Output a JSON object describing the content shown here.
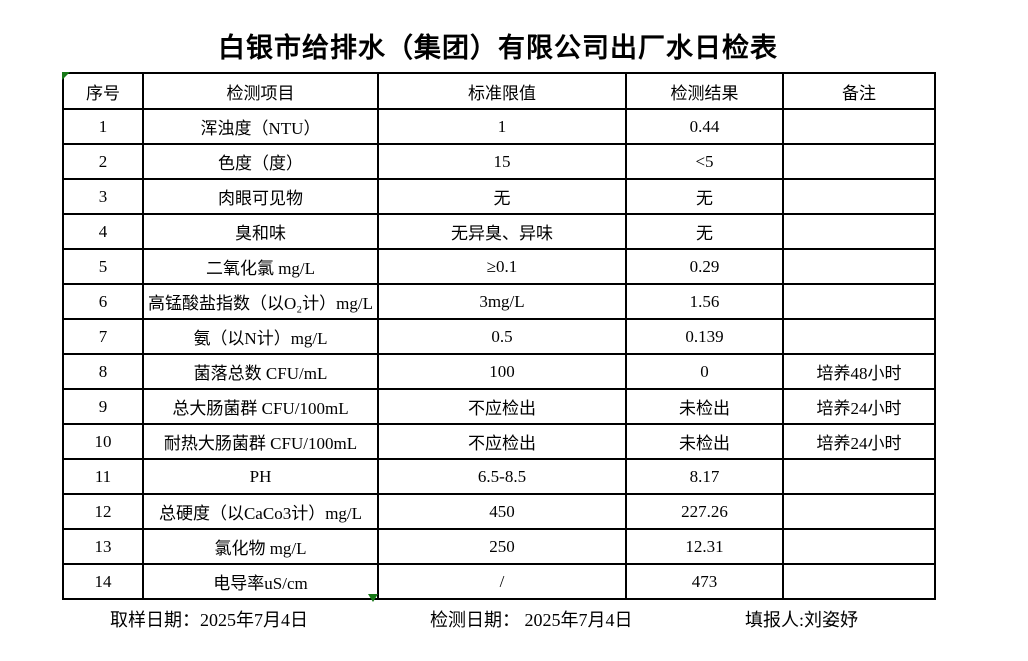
{
  "title": "白银市给排水（集团）有限公司出厂水日检表",
  "table": {
    "headers": [
      "序号",
      "检测项目",
      "标准限值",
      "检测结果",
      "备注"
    ],
    "rows": [
      [
        "1",
        "浑浊度（NTU）",
        "1",
        "0.44",
        ""
      ],
      [
        "2",
        "色度（度）",
        "15",
        "<5",
        ""
      ],
      [
        "3",
        "肉眼可见物",
        "无",
        "无",
        ""
      ],
      [
        "4",
        "臭和味",
        "无异臭、异味",
        "无",
        ""
      ],
      [
        "5",
        "二氧化氯 mg/L",
        "≥0.1",
        "0.29",
        ""
      ],
      [
        "6",
        "高锰酸盐指数（以O₂计）mg/L",
        "3mg/L",
        "1.56",
        ""
      ],
      [
        "7",
        "氨（以N计）mg/L",
        "0.5",
        "0.139",
        ""
      ],
      [
        "8",
        "菌落总数 CFU/mL",
        "100",
        "0",
        "培养48小时"
      ],
      [
        "9",
        "总大肠菌群 CFU/100mL",
        "不应检出",
        "未检出",
        "培养24小时"
      ],
      [
        "10",
        "耐热大肠菌群 CFU/100mL",
        "不应检出",
        "未检出",
        "培养24小时"
      ],
      [
        "11",
        "PH",
        "6.5-8.5",
        "8.17",
        ""
      ],
      [
        "12",
        "总硬度（以CaCo3计）mg/L",
        "450",
        "227.26",
        ""
      ],
      [
        "13",
        "氯化物 mg/L",
        "250",
        "12.31",
        ""
      ],
      [
        "14",
        "电导率uS/cm",
        "/",
        "473",
        ""
      ]
    ]
  },
  "footer": {
    "sampling_date": "取样日期：2025年7月4日",
    "testing_date": "检测日期： 2025年7月4日",
    "reporter": "填报人:刘姿妤"
  },
  "icons": {
    "corner_marker": "green-triangle-marker",
    "bottom_marker": "green-triangle-marker"
  },
  "colors": {
    "background": "#ffffff",
    "border": "#000000",
    "text": "#000000",
    "marker_green": "#157815"
  }
}
